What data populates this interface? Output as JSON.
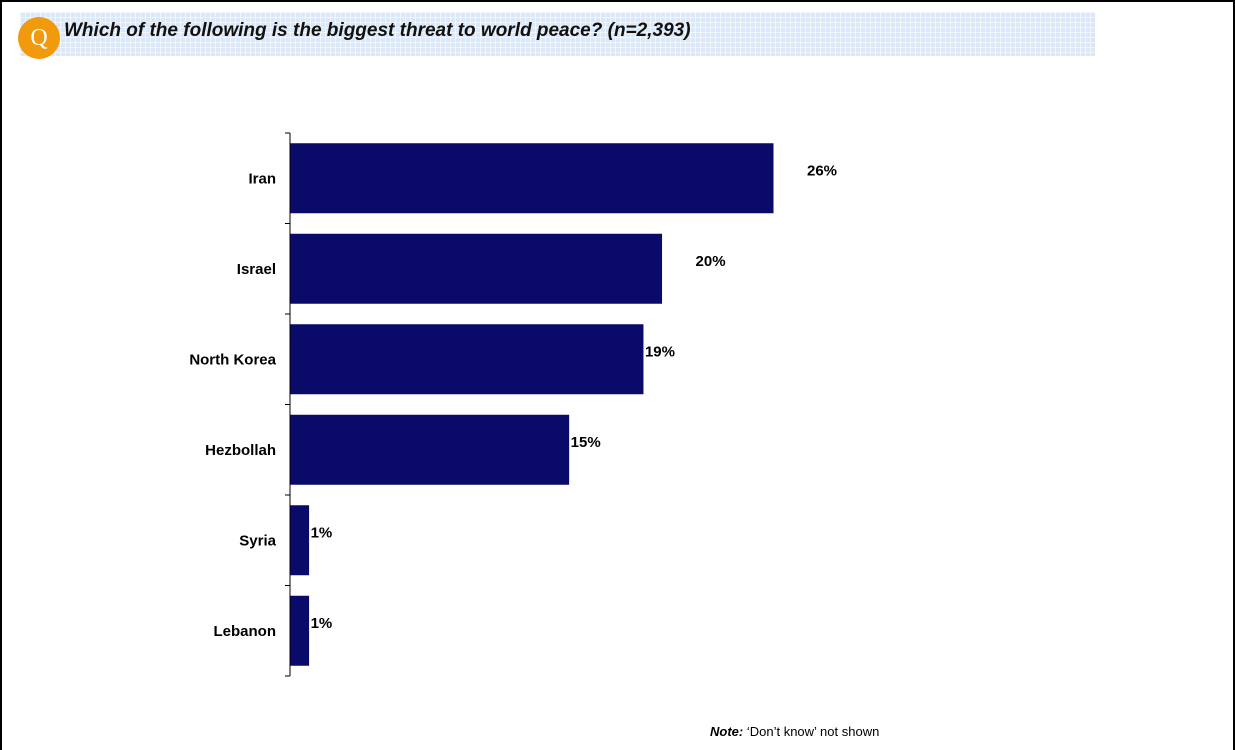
{
  "header": {
    "badge": "Q",
    "question": "Which of the following is the biggest threat to world peace? (n=2,393)"
  },
  "note": {
    "label": "Note:",
    "text": "‘Don’t know’ not shown"
  },
  "colors": {
    "bar": "#0a0a6b",
    "badge": "#f29a0e",
    "header_band": "#dbe8f7"
  },
  "chart_data": {
    "type": "bar",
    "orientation": "horizontal",
    "categories": [
      "Iran",
      "Israel",
      "North Korea",
      "Hezbollah",
      "Syria",
      "Lebanon"
    ],
    "values": [
      26,
      20,
      19,
      15,
      1,
      1
    ],
    "data_labels": [
      "26%",
      "20%",
      "19%",
      "15%",
      "1%",
      "1%"
    ],
    "xlim": [
      0,
      30
    ],
    "grid": false,
    "legend": "none"
  }
}
